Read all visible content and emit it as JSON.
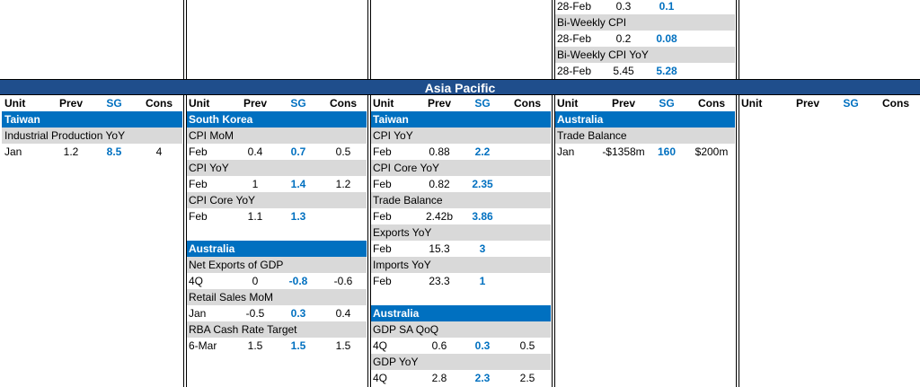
{
  "top": {
    "rows": [
      [
        "28-Feb",
        "0.3",
        "0.1"
      ],
      "Bi-Weekly CPI",
      [
        "28-Feb",
        "0.2",
        "0.08"
      ],
      "Bi-Weekly CPI YoY",
      [
        "28-Feb",
        "5.45",
        "5.28"
      ]
    ]
  },
  "region": "Asia Pacific",
  "columns": [
    {
      "header": [
        "Unit",
        "Prev",
        "SG",
        "Cons"
      ],
      "sections": [
        {
          "title": "Taiwan",
          "items": [
            {
              "name": "Industrial Production YoY",
              "rows": [
                [
                  "Jan",
                  "1.2",
                  "8.5",
                  "4"
                ]
              ]
            }
          ]
        }
      ]
    },
    {
      "header": [
        "Unit",
        "Prev",
        "SG",
        "Cons"
      ],
      "sections": [
        {
          "title": "South Korea",
          "items": [
            {
              "name": "CPI MoM",
              "rows": [
                [
                  "Feb",
                  "0.4",
                  "0.7",
                  "0.5"
                ]
              ]
            },
            {
              "name": "CPI YoY",
              "rows": [
                [
                  "Feb",
                  "1",
                  "1.4",
                  "1.2"
                ]
              ]
            },
            {
              "name": "CPI Core YoY",
              "rows": [
                [
                  "Feb",
                  "1.1",
                  "1.3"
                ]
              ]
            }
          ]
        },
        {
          "title": "Australia",
          "items": [
            {
              "name": "Net Exports of GDP",
              "rows": [
                [
                  "4Q",
                  "0",
                  "-0.8",
                  "-0.6"
                ]
              ]
            },
            {
              "name": "Retail Sales MoM",
              "rows": [
                [
                  "Jan",
                  "-0.5",
                  "0.3",
                  "0.4"
                ]
              ]
            },
            {
              "name": "RBA Cash Rate Target",
              "rows": [
                [
                  "6-Mar",
                  "1.5",
                  "1.5",
                  "1.5"
                ]
              ]
            }
          ]
        }
      ]
    },
    {
      "header": [
        "Unit",
        "Prev",
        "SG",
        "Cons"
      ],
      "sections": [
        {
          "title": "Taiwan",
          "items": [
            {
              "name": "CPI YoY",
              "rows": [
                [
                  "Feb",
                  "0.88",
                  "2.2"
                ]
              ]
            },
            {
              "name": "CPI Core YoY",
              "rows": [
                [
                  "Feb",
                  "0.82",
                  "2.35"
                ]
              ]
            },
            {
              "name": "Trade Balance",
              "rows": [
                [
                  "Feb",
                  "2.42b",
                  "3.86"
                ]
              ]
            },
            {
              "name": "Exports YoY",
              "rows": [
                [
                  "Feb",
                  "15.3",
                  "3"
                ]
              ]
            },
            {
              "name": "Imports YoY",
              "rows": [
                [
                  "Feb",
                  "23.3",
                  "1"
                ]
              ]
            }
          ]
        },
        {
          "title": "Australia",
          "items": [
            {
              "name": "GDP SA QoQ",
              "rows": [
                [
                  "4Q",
                  "0.6",
                  "0.3",
                  "0.5"
                ]
              ]
            },
            {
              "name": "GDP YoY",
              "rows": [
                [
                  "4Q",
                  "2.8",
                  "2.3",
                  "2.5"
                ]
              ]
            }
          ]
        }
      ]
    },
    {
      "header": [
        "Unit",
        "Prev",
        "SG",
        "Cons"
      ],
      "sections": [
        {
          "title": "Australia",
          "items": [
            {
              "name": "Trade Balance",
              "rows": [
                [
                  "Jan",
                  "-$1358m",
                  "160",
                  "$200m"
                ]
              ]
            }
          ]
        }
      ]
    },
    {
      "header": [
        "Unit",
        "Prev",
        "SG",
        "Cons"
      ],
      "sections": []
    }
  ]
}
